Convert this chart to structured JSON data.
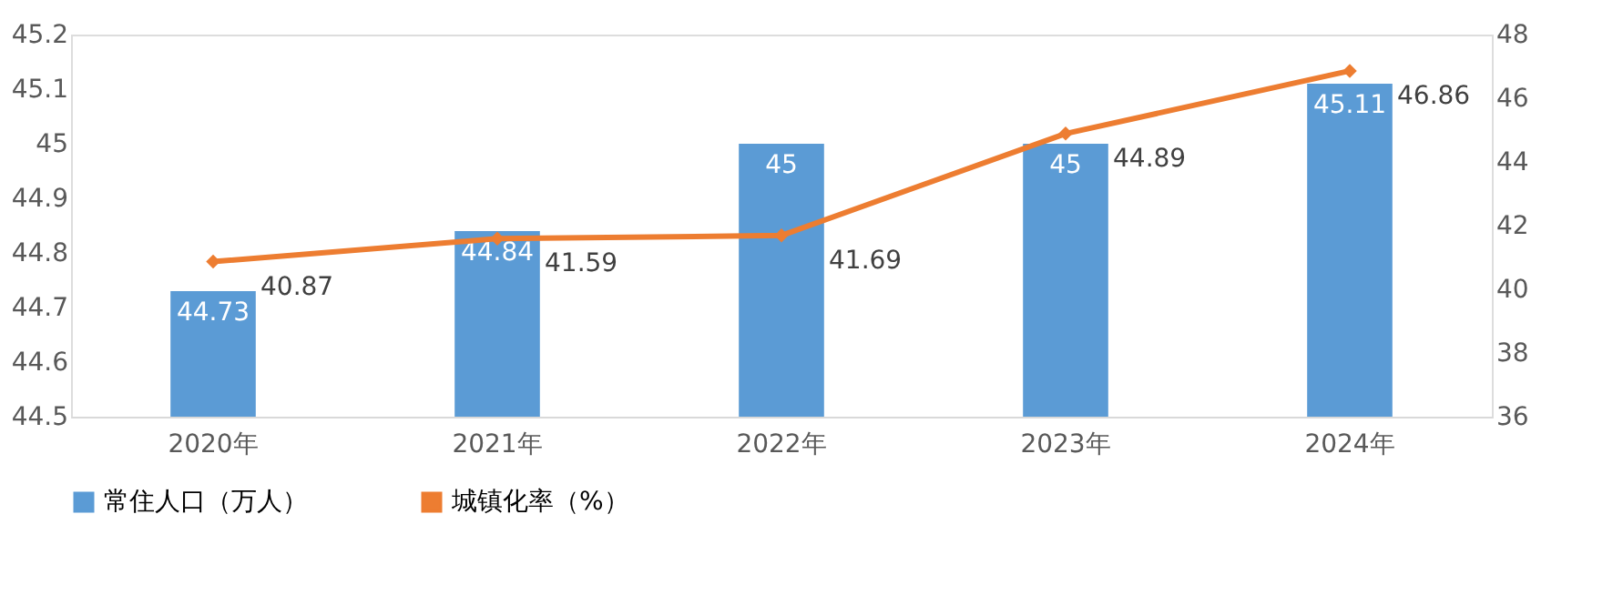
{
  "chart_data": {
    "type": "bar",
    "categories": [
      "2020年",
      "2021年",
      "2022年",
      "2023年",
      "2024年"
    ],
    "series": [
      {
        "name": "常住人口（万人）",
        "color": "#5b9bd5",
        "values": [
          44.73,
          44.84,
          45,
          45,
          45.11
        ]
      },
      {
        "name": "城镇化率（%）",
        "type": "line",
        "axis": "y2",
        "color": "#ed7d31",
        "marker": "diamond",
        "values": [
          40.87,
          41.59,
          41.69,
          44.89,
          46.86
        ]
      }
    ],
    "ylim": [
      44.5,
      45.2
    ],
    "yticks": [
      44.5,
      44.6,
      44.7,
      44.8,
      44.9,
      45,
      45.1,
      45.2
    ],
    "y2lim": [
      36,
      48
    ],
    "y2ticks": [
      36,
      38,
      40,
      42,
      44,
      46,
      48
    ],
    "data_labels": true,
    "grid": false,
    "legend": "bottom"
  }
}
